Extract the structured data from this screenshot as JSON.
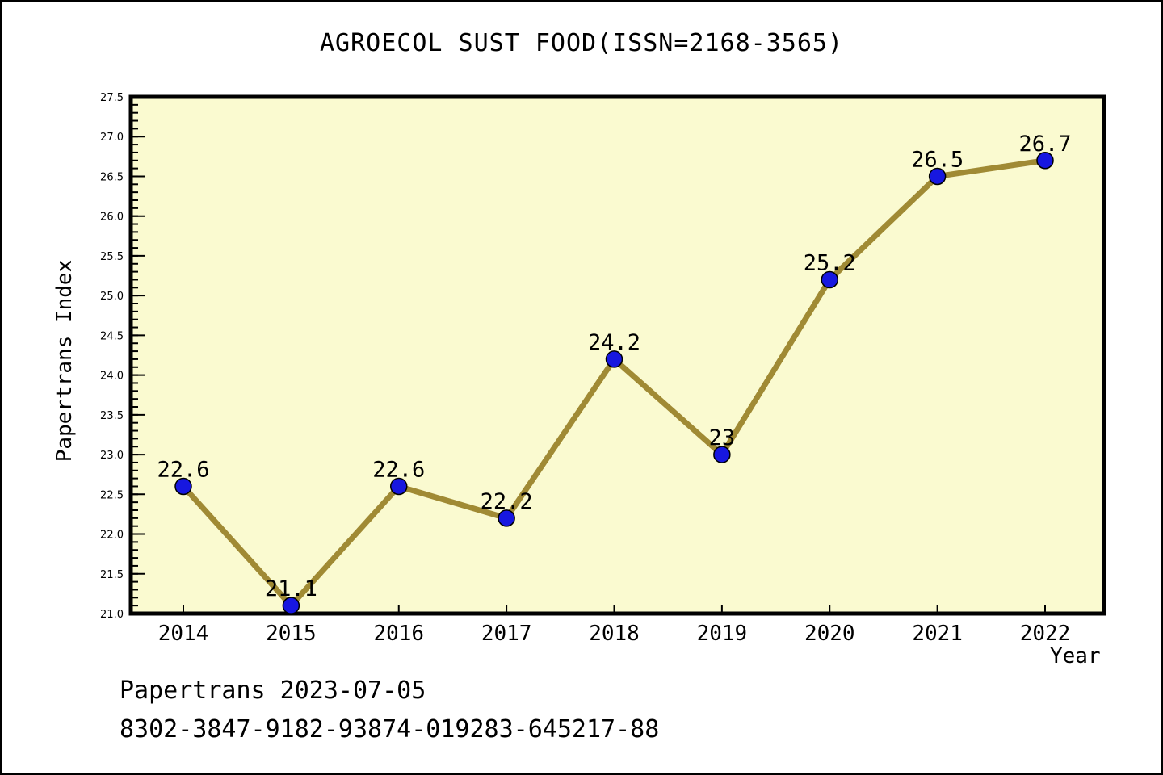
{
  "title": "AGROECOL SUST FOOD(ISSN=2168-3565)",
  "footer": {
    "line1": "Papertrans 2023-07-05",
    "line2": "8302-3847-9182-93874-019283-645217-88"
  },
  "chart_data": {
    "type": "line",
    "title": "AGROECOL SUST FOOD(ISSN=2168-3565)",
    "xlabel": "Year",
    "ylabel": "Papertrans Index",
    "categories": [
      "2014",
      "2015",
      "2016",
      "2017",
      "2018",
      "2019",
      "2020",
      "2021",
      "2022"
    ],
    "series": [
      {
        "name": "Papertrans Index",
        "values": [
          22.6,
          21.1,
          22.6,
          22.2,
          24.2,
          23,
          25.2,
          26.5,
          26.7
        ],
        "point_labels": [
          "22.6",
          "21.1",
          "22.6",
          "22.2",
          "24.2",
          "23",
          "25.2",
          "26.5",
          "26.7"
        ]
      }
    ],
    "ylim": [
      21.0,
      27.5
    ],
    "y_major_step": 0.5,
    "y_minor_step": 0.1,
    "y_tick_labels": [
      "21.0",
      "21.5",
      "22.0",
      "22.5",
      "23.0",
      "23.5",
      "24.0",
      "24.5",
      "25.0",
      "25.5",
      "26.0",
      "26.5",
      "27.0",
      "27.5"
    ],
    "grid": false,
    "legend": "none",
    "colors": {
      "plot_background": "#FAFAD0",
      "line": "#A08A34",
      "marker_fill": "#1717E0",
      "marker_edge": "#000000",
      "axis": "#000000",
      "text": "#000000"
    }
  }
}
